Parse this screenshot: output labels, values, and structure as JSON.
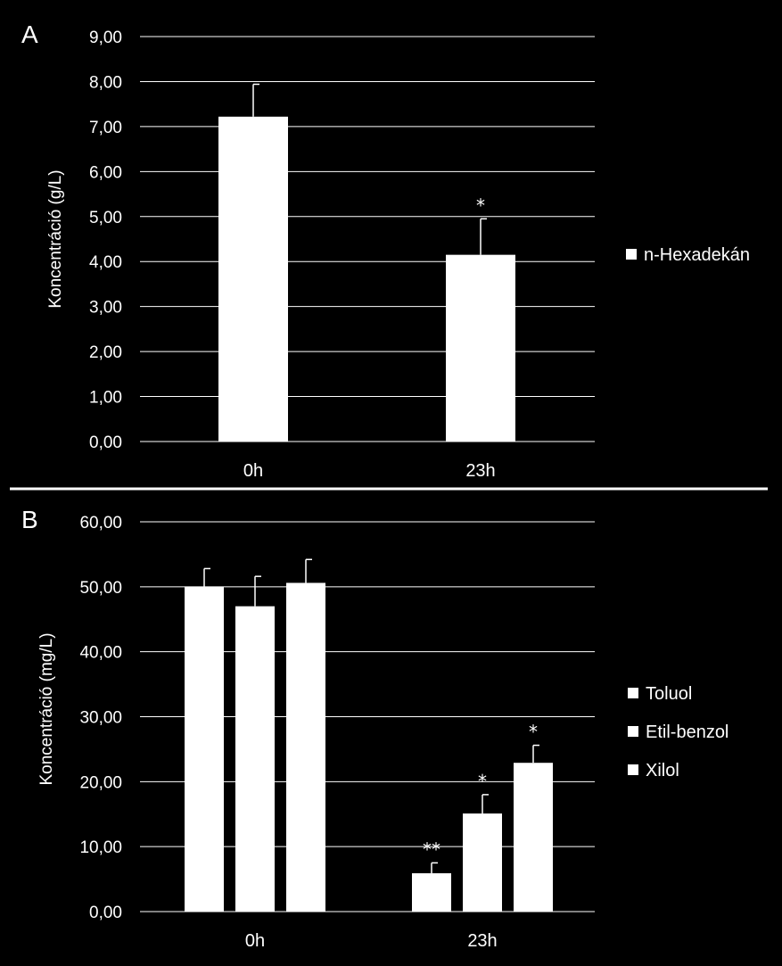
{
  "chart_data": [
    {
      "type": "bar",
      "panel_label": "A",
      "categories": [
        "0h",
        "23h"
      ],
      "series": [
        {
          "name": "n-Hexadekán",
          "values": [
            7.22,
            4.15
          ],
          "errors": [
            0.72,
            0.8
          ],
          "annotations": [
            "",
            "*"
          ]
        }
      ],
      "ylabel": "Koncentráció (g/L)",
      "xlabel": "",
      "ylim": [
        0,
        9
      ],
      "yticks": [
        "0,00",
        "1,00",
        "2,00",
        "3,00",
        "4,00",
        "5,00",
        "6,00",
        "7,00",
        "8,00",
        "9,00"
      ],
      "grid": true,
      "legend_position": "right",
      "colors": {
        "bar": "#ffffff",
        "background": "#000000",
        "grid": "#ffffff"
      }
    },
    {
      "type": "bar",
      "panel_label": "B",
      "categories": [
        "0h",
        "23h"
      ],
      "series": [
        {
          "name": "Toluol",
          "values": [
            50.0,
            5.9
          ],
          "errors": [
            2.8,
            1.6
          ],
          "annotations": [
            "",
            "**"
          ]
        },
        {
          "name": "Etil-benzol",
          "values": [
            47.0,
            15.1
          ],
          "errors": [
            4.6,
            2.9
          ],
          "annotations": [
            "",
            "*"
          ]
        },
        {
          "name": "Xilol",
          "values": [
            50.6,
            22.9
          ],
          "errors": [
            3.6,
            2.7
          ],
          "annotations": [
            "",
            "*"
          ]
        }
      ],
      "ylabel": "Koncentráció (mg/L)",
      "xlabel": "",
      "ylim": [
        0,
        60
      ],
      "yticks": [
        "0,00",
        "10,00",
        "20,00",
        "30,00",
        "40,00",
        "50,00",
        "60,00"
      ],
      "grid": true,
      "legend_position": "right",
      "colors": {
        "bar": "#ffffff",
        "background": "#000000",
        "grid": "#ffffff"
      }
    }
  ]
}
